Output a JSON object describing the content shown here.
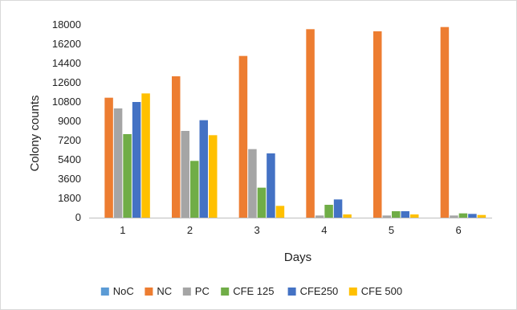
{
  "chart_data": {
    "type": "bar",
    "title": "",
    "xlabel": "Days",
    "ylabel": "Colony counts",
    "categories": [
      "1",
      "2",
      "3",
      "4",
      "5",
      "6"
    ],
    "ylim": [
      0,
      18000
    ],
    "yticks": [
      0,
      1800,
      3600,
      5400,
      7200,
      9000,
      10800,
      12600,
      14400,
      16200,
      18000
    ],
    "grid": false,
    "legend_position": "bottom",
    "series": [
      {
        "name": "NoC",
        "color": "#5b9bd5",
        "values": [
          0,
          0,
          0,
          0,
          0,
          0
        ]
      },
      {
        "name": "NC",
        "color": "#ed7d31",
        "values": [
          11200,
          13200,
          15100,
          17600,
          17400,
          17800
        ]
      },
      {
        "name": "PC",
        "color": "#a5a5a5",
        "values": [
          10200,
          8100,
          6400,
          200,
          200,
          200
        ]
      },
      {
        "name": "CFE 125",
        "color": "#70ad47",
        "values": [
          7800,
          5300,
          2800,
          1200,
          600,
          400
        ]
      },
      {
        "name": "CFE250",
        "color": "#4472c4",
        "values": [
          10800,
          9100,
          6000,
          1700,
          600,
          350
        ]
      },
      {
        "name": "CFE 500",
        "color": "#ffc000",
        "values": [
          11600,
          7700,
          1100,
          300,
          300,
          250
        ]
      }
    ]
  }
}
